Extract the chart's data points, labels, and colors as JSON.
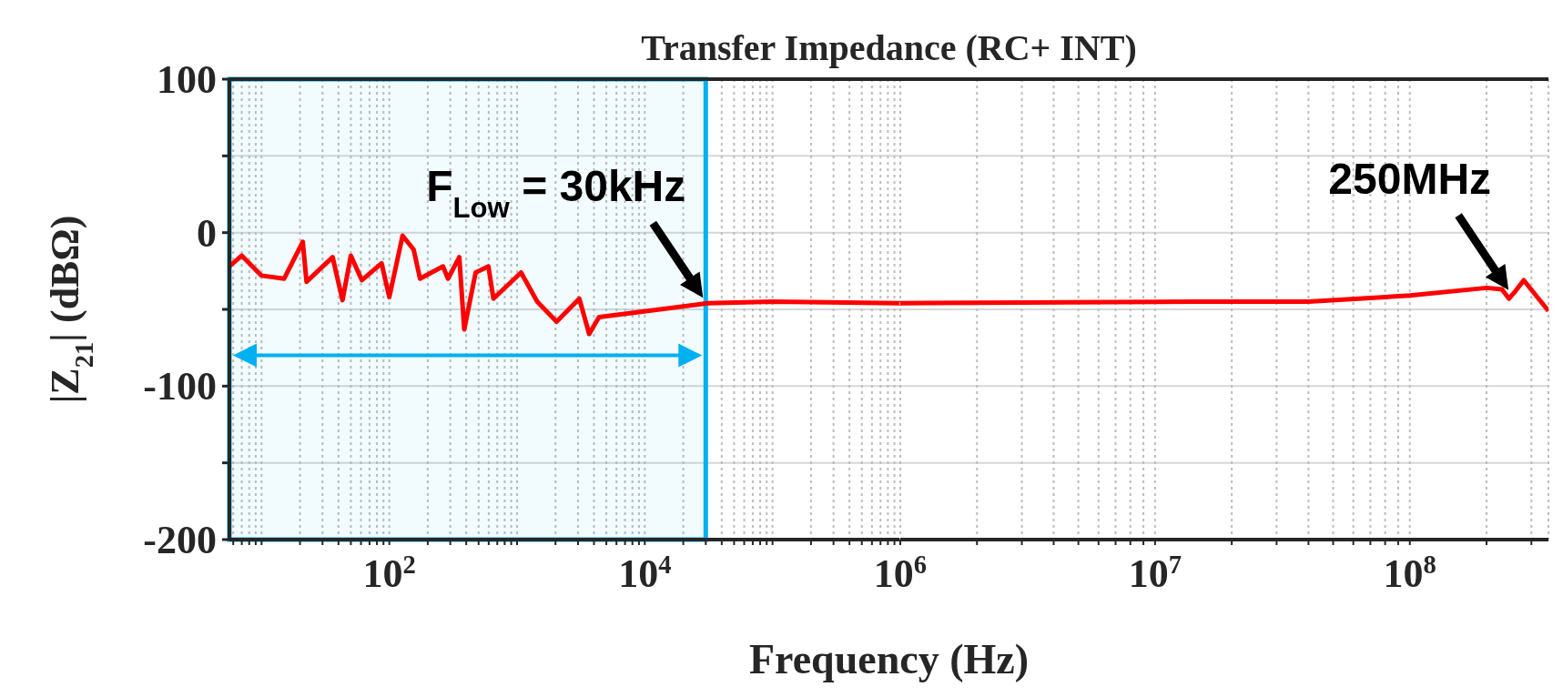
{
  "chart_data": [
    {
      "type": "line",
      "title": "Transfer Impedance (RC+ INT)",
      "xlabel": "Frequency (Hz)",
      "ylabel": "|Z$_{21}$| (dBΩ)",
      "log": "x",
      "grid": true,
      "marker": "none",
      "line_style": "solid",
      "xlim": [
        5.6,
        1000000
      ],
      "ylim": [
        -200,
        100
      ],
      "xticks": [
        {
          "value": 6,
          "label": null
        },
        {
          "value": 7,
          "label": null
        },
        {
          "value": 8,
          "label": null
        },
        {
          "value": 9,
          "label": null
        },
        {
          "value": 10,
          "label": null
        },
        {
          "value": 20,
          "label": null
        },
        {
          "value": 30,
          "label": null
        },
        {
          "value": 40,
          "label": null
        },
        {
          "value": 50,
          "label": null
        },
        {
          "value": 60,
          "label": null
        },
        {
          "value": 70,
          "label": null
        },
        {
          "value": 80,
          "label": null
        },
        {
          "value": 90,
          "label": null
        },
        {
          "value": 100,
          "label": "10$^{2}$"
        },
        {
          "value": 200,
          "label": null
        },
        {
          "value": 300,
          "label": null
        },
        {
          "value": 400,
          "label": null
        },
        {
          "value": 500,
          "label": null
        },
        {
          "value": 600,
          "label": null
        },
        {
          "value": 700,
          "label": null
        },
        {
          "value": 800,
          "label": null
        },
        {
          "value": 900,
          "label": null
        },
        {
          "value": 1000,
          "label": null
        },
        {
          "value": 2000,
          "label": null
        },
        {
          "value": 3000,
          "label": null
        },
        {
          "value": 4000,
          "label": null
        },
        {
          "value": 5000,
          "label": null
        },
        {
          "value": 6000,
          "label": null
        },
        {
          "value": 7000,
          "label": null
        },
        {
          "value": 8000,
          "label": null
        },
        {
          "value": 9000,
          "label": null
        },
        {
          "value": 10000,
          "label": "10$^{4}$"
        },
        {
          "value": 20000,
          "label": null
        },
        {
          "value": 30000,
          "label": null
        },
        {
          "value": 40000,
          "label": null
        },
        {
          "value": 50000,
          "label": null
        },
        {
          "value": 60000,
          "label": null
        },
        {
          "value": 70000,
          "label": null
        },
        {
          "value": 80000,
          "label": null
        },
        {
          "value": 90000,
          "label": null
        },
        {
          "value": 100000,
          "label": null
        },
        {
          "value": 200000,
          "label": null
        },
        {
          "value": 300000,
          "label": null
        },
        {
          "value": 400000,
          "label": null
        },
        {
          "value": 500000,
          "label": null
        },
        {
          "value": 600000,
          "label": null
        },
        {
          "value": 700000,
          "label": null
        },
        {
          "value": 800000,
          "label": null
        },
        {
          "value": 900000,
          "label": null
        }
      ],
      "yticks": [
        -200,
        {
          "value": -150,
          "label": null
        },
        -100,
        {
          "value": -50,
          "label": null
        },
        0,
        {
          "value": 50,
          "label": null
        },
        100
      ],
      "bands": [
        {
          "axis": "x",
          "from": 5.6,
          "to": 30000,
          "color": "#00b0f0"
        }
      ],
      "annotations": [
        {
          "text": "F$_{Low}$ = 30kHz",
          "x": 30000,
          "y": -46
        }
      ],
      "series": [
        {
          "color": "#ff0000",
          "x": [
            5.6,
            7,
            10,
            15,
            21,
            22.5,
            36,
            43,
            50,
            61,
            87,
            100,
            127,
            155,
            174,
            263,
            288,
            353,
            386,
            474,
            597,
            653,
            851,
            1075,
            1438,
            2040,
            3070,
            3670,
            4380,
            10500,
            31000,
            100000,
            1000000
          ],
          "values": [
            -22,
            -15,
            -28,
            -30,
            -6,
            -32,
            -16,
            -44,
            -15,
            -31,
            -20,
            -42,
            -2,
            -11,
            -30,
            -22,
            -30,
            -16,
            -63,
            -26,
            -22,
            -43,
            -34,
            -26,
            -45,
            -58,
            -43,
            -66,
            -55,
            -51,
            -46,
            -45,
            -46
          ]
        }
      ]
    },
    {
      "type": "line",
      "log": "x",
      "grid": true,
      "marker": "none",
      "line_style": "solid",
      "tick_labels": "x",
      "xlim": [
        1000000,
        350000000
      ],
      "ylim": [
        -200,
        100
      ],
      "xticks": [
        {
          "value": 1000000,
          "label": "10$^{6}$"
        },
        {
          "value": 2000000,
          "label": null
        },
        {
          "value": 3000000,
          "label": null
        },
        {
          "value": 4000000,
          "label": null
        },
        {
          "value": 5000000,
          "label": null
        },
        {
          "value": 6000000,
          "label": null
        },
        {
          "value": 7000000,
          "label": null
        },
        {
          "value": 8000000,
          "label": null
        },
        {
          "value": 9000000,
          "label": null
        },
        {
          "value": 10000000,
          "label": "10$^{7}$"
        },
        {
          "value": 20000000,
          "label": null
        },
        {
          "value": 30000000,
          "label": null
        },
        {
          "value": 40000000,
          "label": null
        },
        {
          "value": 50000000,
          "label": null
        },
        {
          "value": 60000000,
          "label": null
        },
        {
          "value": 70000000,
          "label": null
        },
        {
          "value": 80000000,
          "label": null
        },
        {
          "value": 90000000,
          "label": null
        },
        {
          "value": 100000000,
          "label": "10$^{8}$"
        },
        {
          "value": 200000000,
          "label": null
        },
        {
          "value": 300000000,
          "label": null
        }
      ],
      "yticks": [
        {
          "value": -200,
          "label": null
        },
        {
          "value": -150,
          "label": null
        },
        {
          "value": -100,
          "label": null
        },
        {
          "value": -50,
          "label": null
        },
        {
          "value": 0,
          "label": null
        },
        {
          "value": 50,
          "label": null
        },
        {
          "value": 100,
          "label": null
        }
      ],
      "annotations": [
        {
          "text": "250MHz",
          "x": 250000000,
          "y": -41
        }
      ],
      "series": [
        {
          "color": "#ff0000",
          "x": [
            1000000,
            3000000,
            14500000,
            40000000,
            100000000,
            200000000,
            230000000,
            245000000,
            260000000,
            280000000,
            350000000
          ],
          "values": [
            -46,
            -45.5,
            -45,
            -45,
            -41,
            -36,
            -37,
            -43,
            -38,
            -31,
            -51
          ]
        }
      ]
    }
  ]
}
